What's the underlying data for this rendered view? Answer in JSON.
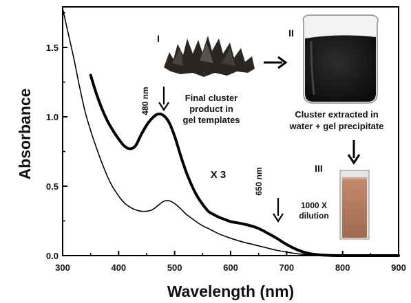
{
  "chart_data": {
    "type": "line",
    "xlabel": "Wavelength (nm)",
    "ylabel": "Absorbance",
    "xlim": [
      300,
      900
    ],
    "ylim": [
      0.0,
      1.78
    ],
    "xticks": [
      "300",
      "400",
      "500",
      "600",
      "700",
      "800",
      "900"
    ],
    "yticks": [
      "0.0",
      "0.5",
      "1.0",
      "1.5"
    ],
    "grid": false,
    "legend": "none",
    "series": [
      {
        "x": [
          300,
          310,
          320,
          330,
          340,
          350,
          360,
          370,
          380,
          390,
          400,
          410,
          420,
          430,
          440,
          450,
          460,
          470,
          480,
          490,
          500,
          510,
          520,
          530,
          540,
          550,
          560,
          570,
          580,
          590,
          600,
          620,
          640,
          660,
          680,
          700,
          720,
          740,
          760,
          780,
          800,
          820,
          840,
          860,
          880,
          900
        ],
        "y": [
          1.78,
          1.6,
          1.42,
          1.22,
          1.04,
          0.9,
          0.78,
          0.67,
          0.57,
          0.49,
          0.43,
          0.38,
          0.35,
          0.33,
          0.32,
          0.32,
          0.33,
          0.36,
          0.39,
          0.395,
          0.375,
          0.34,
          0.3,
          0.27,
          0.24,
          0.215,
          0.195,
          0.175,
          0.155,
          0.14,
          0.125,
          0.1,
          0.08,
          0.06,
          0.04,
          0.025,
          0.013,
          0.006,
          0.003,
          0.001,
          0.0,
          0.0,
          0.0,
          0.0,
          0.0,
          0.0
        ],
        "color": "#000000"
      },
      {
        "x": [
          350,
          360,
          370,
          380,
          390,
          400,
          410,
          420,
          430,
          440,
          450,
          460,
          470,
          480,
          490,
          500,
          510,
          520,
          530,
          540,
          550,
          560,
          570,
          580,
          590,
          600,
          620,
          640,
          650,
          660,
          680,
          700,
          720,
          740,
          760,
          780,
          800,
          820,
          840,
          860,
          880,
          900
        ],
        "y": [
          1.3,
          1.17,
          1.06,
          0.97,
          0.9,
          0.84,
          0.79,
          0.77,
          0.79,
          0.87,
          0.94,
          0.99,
          1.02,
          1.01,
          0.96,
          0.86,
          0.73,
          0.61,
          0.51,
          0.43,
          0.37,
          0.32,
          0.295,
          0.275,
          0.26,
          0.245,
          0.23,
          0.21,
          0.195,
          0.175,
          0.13,
          0.08,
          0.04,
          0.015,
          0.005,
          0.001,
          0.0,
          0.0,
          0.0,
          0.0,
          0.0,
          0.0
        ],
        "color": "#000000"
      }
    ],
    "annotations": [
      {
        "text": "480 nm",
        "x": 480,
        "y": 1.02
      },
      {
        "text": "650 nm",
        "x": 650,
        "y": 0.2
      },
      {
        "text": "X 3",
        "x": 640,
        "y": 0.6
      }
    ]
  },
  "insets": {
    "step1": {
      "numeral": "I",
      "caption": [
        "Final cluster",
        "product in",
        "gel templates"
      ]
    },
    "step2": {
      "numeral": "II",
      "caption": [
        "Cluster extracted in",
        "water + gel precipitate"
      ]
    },
    "step3": {
      "numeral": "III",
      "caption": [
        "1000 X",
        "dilution"
      ]
    }
  },
  "colors": {
    "axes": "#000000",
    "gel_dark": "#2a2622",
    "beaker_liquid": "#161616",
    "cuvette_liquid": "#b07a60"
  }
}
